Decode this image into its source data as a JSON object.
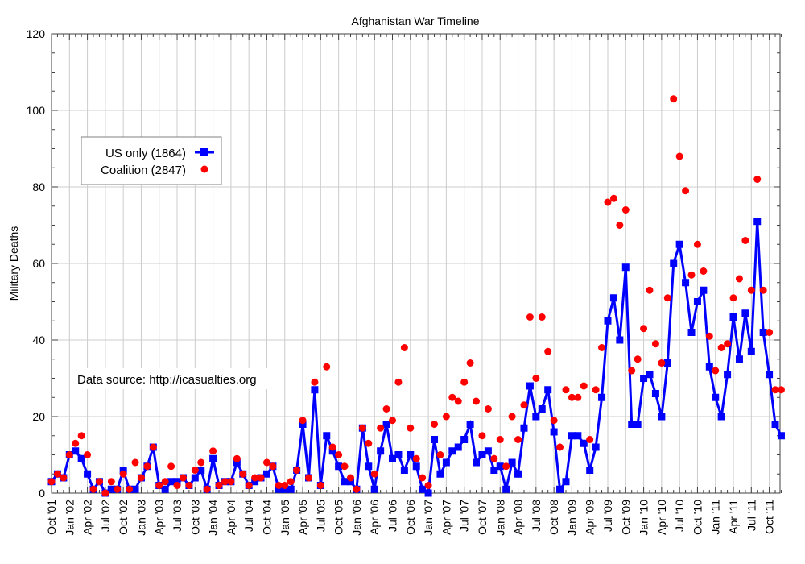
{
  "chart_data": {
    "type": "line",
    "title": "Afghanistan War Timeline",
    "xlabel": "",
    "ylabel": "Military Deaths",
    "ylim": [
      0,
      120
    ],
    "yticks": [
      0,
      20,
      40,
      60,
      80,
      100,
      120
    ],
    "x_start": "Oct '01",
    "x_tick_labels": [
      "Oct '01",
      "Jan '02",
      "Apr '02",
      "Jul '02",
      "Oct '02",
      "Jan '03",
      "Apr '03",
      "Jul '03",
      "Oct '03",
      "Jan '04",
      "Apr '04",
      "Jul '04",
      "Oct '04",
      "Jan '05",
      "Apr '05",
      "Jul '05",
      "Oct '05",
      "Jan '06",
      "Apr '06",
      "Jul '06",
      "Oct '06",
      "Jan '07",
      "Apr '07",
      "Jul '07",
      "Oct '07",
      "Jan '08",
      "Apr '08",
      "Jul '08",
      "Oct '08",
      "Jan '09",
      "Apr '09",
      "Jul '09",
      "Oct '09",
      "Jan '10",
      "Apr '10",
      "Jul '10",
      "Oct '10",
      "Jan '11",
      "Apr '11",
      "Jul '11",
      "Oct '11"
    ],
    "grid": true,
    "legend_position": "upper-left",
    "annotation": "Data source: http://icasualties.org",
    "series": [
      {
        "name": "US only (1864)",
        "style": "line-square",
        "color": "#0000ff",
        "values": [
          3,
          5,
          4,
          10,
          11,
          9,
          5,
          1,
          3,
          0,
          1,
          1,
          6,
          1,
          1,
          4,
          7,
          12,
          2,
          1,
          3,
          3,
          4,
          2,
          4,
          6,
          1,
          9,
          2,
          3,
          3,
          8,
          5,
          2,
          3,
          4,
          5,
          7,
          1,
          1,
          1,
          6,
          18,
          4,
          27,
          2,
          15,
          11,
          7,
          3,
          3,
          1,
          17,
          7,
          1,
          11,
          18,
          9,
          10,
          6,
          10,
          7,
          1,
          0,
          14,
          5,
          8,
          11,
          12,
          14,
          18,
          8,
          10,
          11,
          6,
          7,
          1,
          8,
          5,
          17,
          28,
          20,
          22,
          27,
          16,
          1,
          3,
          15,
          15,
          13,
          6,
          12,
          25,
          45,
          51,
          40,
          59,
          18,
          18,
          30,
          31,
          26,
          20,
          34,
          60,
          65,
          55,
          42,
          50,
          53,
          33,
          25,
          20,
          31,
          46,
          35,
          47,
          37,
          71,
          42,
          31,
          18,
          15
        ]
      },
      {
        "name": "Coalition (2847)",
        "style": "points",
        "color": "#ff0000",
        "values": [
          3,
          5,
          4,
          10,
          13,
          15,
          10,
          1,
          3,
          0,
          3,
          1,
          5,
          1,
          8,
          4,
          7,
          12,
          2,
          3,
          7,
          2,
          4,
          2,
          6,
          8,
          1,
          11,
          2,
          3,
          3,
          9,
          5,
          2,
          4,
          4,
          8,
          7,
          2,
          2,
          3,
          6,
          19,
          4,
          29,
          2,
          33,
          12,
          10,
          7,
          4,
          1,
          17,
          13,
          5,
          17,
          22,
          19,
          29,
          38,
          17,
          9,
          4,
          2,
          18,
          10,
          20,
          25,
          24,
          29,
          34,
          24,
          15,
          22,
          9,
          14,
          7,
          20,
          14,
          23,
          46,
          30,
          46,
          37,
          19,
          12,
          27,
          25,
          25,
          28,
          14,
          27,
          38,
          76,
          77,
          70,
          74,
          32,
          35,
          43,
          53,
          39,
          34,
          51,
          103,
          88,
          79,
          57,
          65,
          58,
          41,
          32,
          38,
          39,
          51,
          56,
          66,
          53,
          82,
          53,
          42,
          27,
          27
        ]
      }
    ]
  }
}
